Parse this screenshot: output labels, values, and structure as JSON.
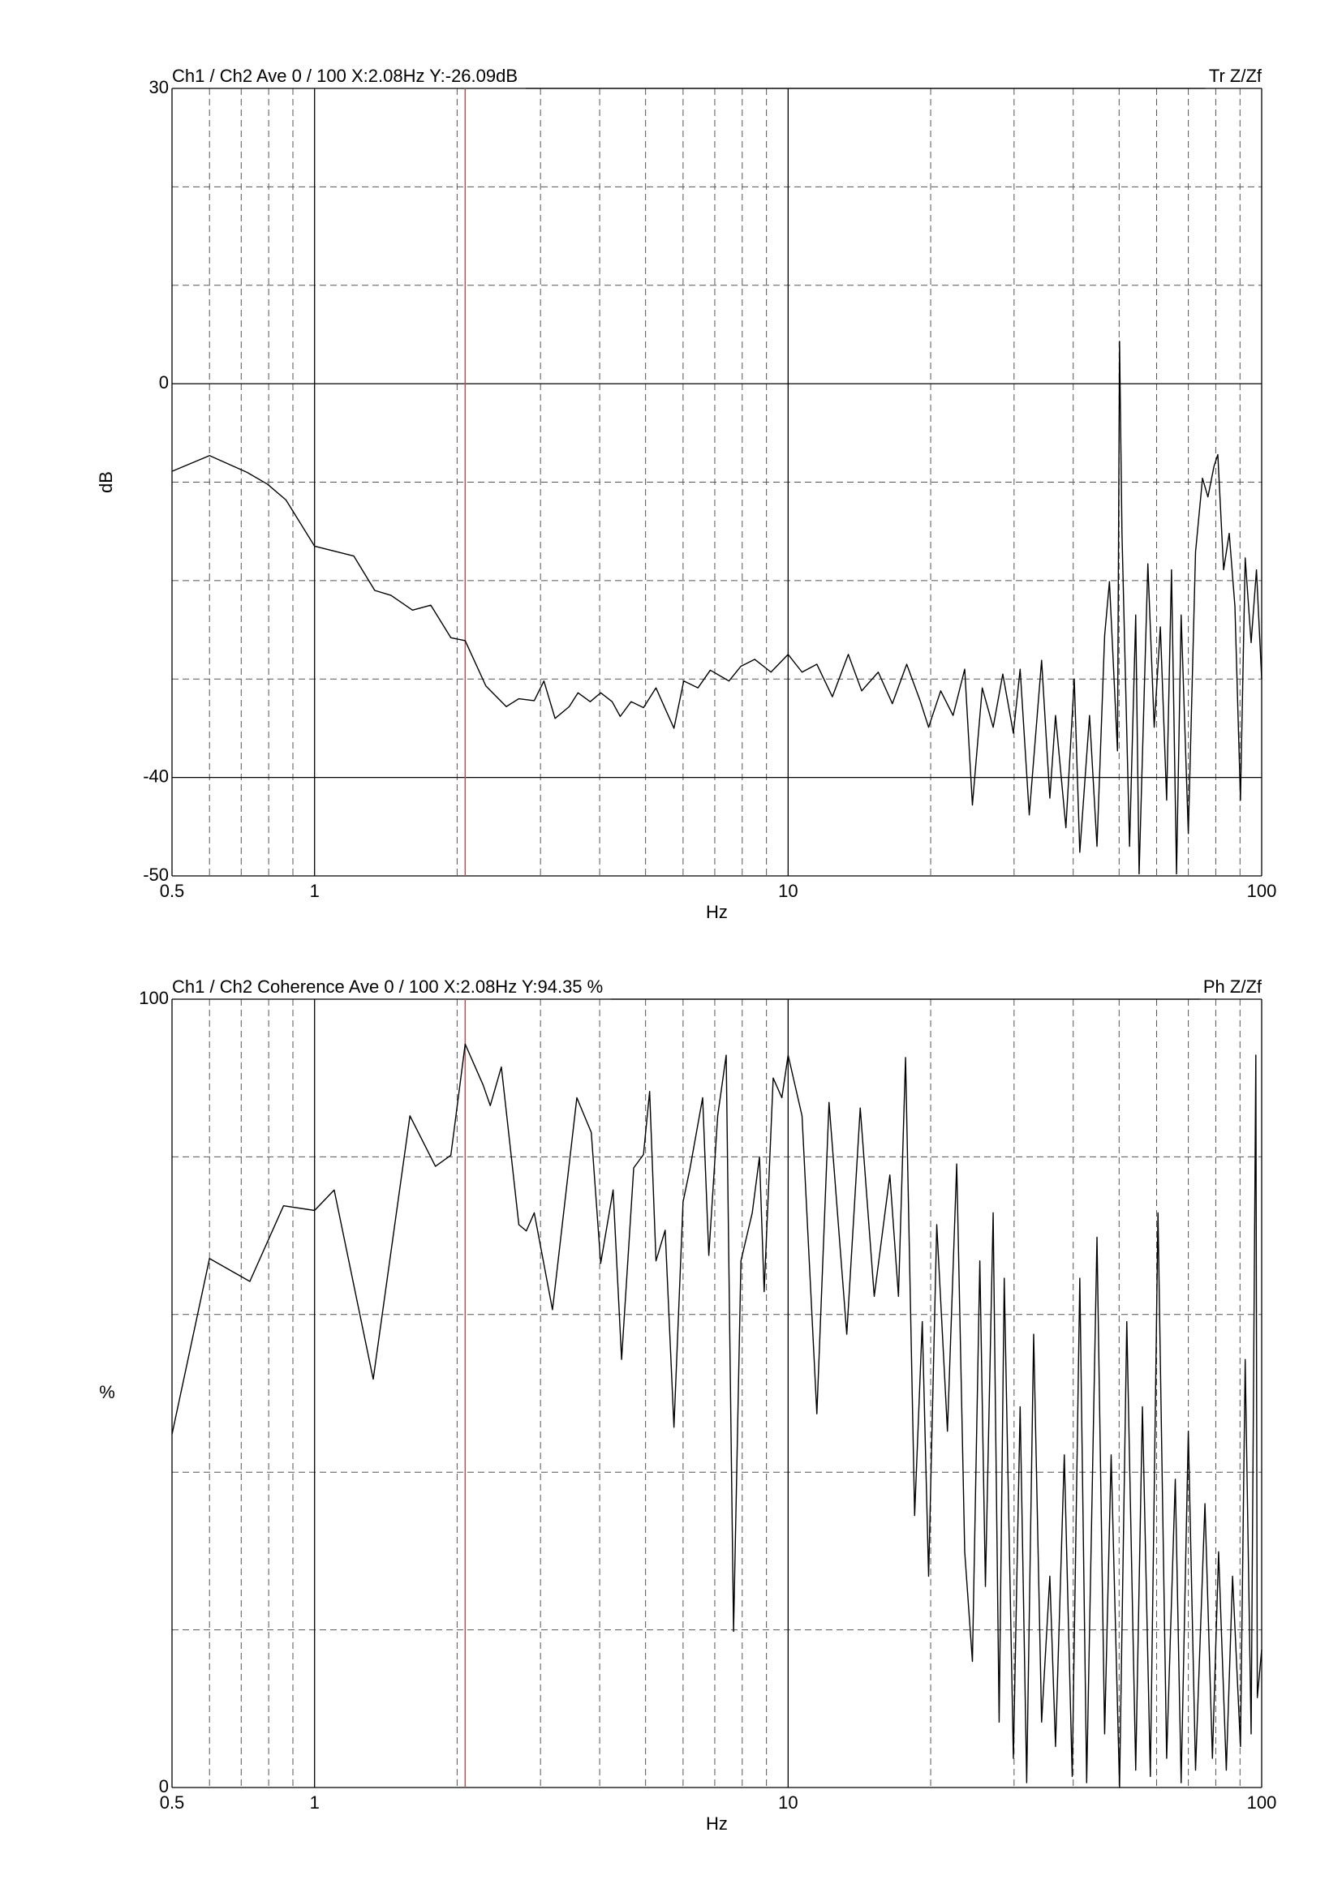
{
  "chart_data": [
    {
      "type": "line",
      "title": "Ch1 / Ch2  Ave 0 / 100  X:2.08Hz  Y:-26.09dB",
      "annotation": "Tr Z/Zf",
      "xlabel": "Hz",
      "ylabel": "dB",
      "ylabel_vertical": true,
      "log_x": true,
      "xlim": [
        0.5,
        100
      ],
      "ylim": [
        -50,
        30
      ],
      "xticks": [
        0.5,
        1,
        10,
        100
      ],
      "yticks": [
        -50,
        -40,
        0,
        30
      ],
      "xgrid_minor": [
        0.6,
        0.7,
        0.8,
        0.9,
        2,
        3,
        4,
        5,
        6,
        7,
        8,
        9,
        20,
        30,
        40,
        50,
        60,
        70,
        80,
        90
      ],
      "ygrid_minor": [
        -30,
        -20,
        -10,
        10,
        20
      ],
      "cursor_x": 2.08,
      "cursor_color": "#d04848",
      "color": "#000000",
      "x": [
        0.5,
        0.6,
        0.72,
        0.795,
        0.87,
        1.0,
        1.21,
        1.34,
        1.45,
        1.61,
        1.76,
        1.94,
        2.08,
        2.3,
        2.54,
        2.7,
        2.91,
        3.05,
        3.22,
        3.45,
        3.6,
        3.82,
        4.02,
        4.25,
        4.42,
        4.66,
        4.95,
        5.26,
        5.5,
        5.74,
        6.02,
        6.45,
        6.85,
        7.5,
        7.95,
        8.5,
        9.2,
        10.0,
        10.7,
        11.5,
        12.4,
        13.4,
        14.3,
        15.5,
        16.6,
        17.8,
        19.0,
        19.8,
        21.0,
        22.3,
        23.6,
        24.5,
        25.7,
        27.1,
        28.4,
        29.9,
        30.9,
        32.3,
        34.3,
        35.7,
        36.7,
        38.6,
        40.2,
        41.3,
        43.3,
        44.9,
        46.6,
        47.7,
        49.6,
        50.1,
        50.7,
        52.6,
        54.2,
        55.1,
        57.5,
        59.3,
        61.1,
        63.0,
        64.5,
        66.1,
        67.6,
        70.0,
        72.5,
        75.0,
        77.0,
        79.3,
        80.8,
        83.1,
        85.4,
        87.8,
        90.2,
        92.3,
        95.0,
        97.5,
        100
      ],
      "values": [
        -8.9,
        -7.3,
        -9.0,
        -10.2,
        -11.8,
        -16.5,
        -17.5,
        -21.0,
        -21.5,
        -23.0,
        -22.5,
        -25.8,
        -26.1,
        -30.7,
        -32.8,
        -32.0,
        -32.2,
        -30.2,
        -34.0,
        -32.8,
        -31.4,
        -32.3,
        -31.4,
        -32.3,
        -33.8,
        -32.3,
        -32.9,
        -30.9,
        -33.0,
        -35.0,
        -30.2,
        -30.9,
        -29.1,
        -30.2,
        -28.7,
        -28.0,
        -29.3,
        -27.5,
        -29.3,
        -28.5,
        -31.8,
        -27.5,
        -31.2,
        -29.3,
        -32.5,
        -28.5,
        -32.2,
        -34.9,
        -31.2,
        -33.7,
        -29.0,
        -42.8,
        -30.9,
        -34.9,
        -29.5,
        -35.5,
        -29.0,
        -43.8,
        -28.1,
        -42.1,
        -33.7,
        -45.1,
        -30.0,
        -47.6,
        -33.7,
        -47.0,
        -25.6,
        -20.1,
        -37.3,
        4.3,
        -15.2,
        -47.0,
        -23.5,
        -49.8,
        -18.3,
        -34.9,
        -24.7,
        -42.3,
        -18.9,
        -49.8,
        -23.5,
        -45.7,
        -17.1,
        -9.6,
        -11.5,
        -8.4,
        -7.2,
        -18.9,
        -15.2,
        -22.6,
        -42.3,
        -17.7,
        -26.3,
        -18.9,
        -30.0
      ]
    },
    {
      "type": "line",
      "title": "Ch1 / Ch2  Coherence Ave 0 / 100  X:2.08Hz  Y:94.35 %",
      "annotation": "Ph Z/Zf",
      "xlabel": "Hz",
      "ylabel": "%",
      "ylabel_vertical": false,
      "log_x": true,
      "xlim": [
        0.5,
        100
      ],
      "ylim": [
        0,
        100
      ],
      "xticks": [
        0.5,
        1,
        10,
        100
      ],
      "yticks": [
        0,
        100
      ],
      "xgrid_minor": [
        0.6,
        0.7,
        0.8,
        0.9,
        2,
        3,
        4,
        5,
        6,
        7,
        8,
        9,
        20,
        30,
        40,
        50,
        60,
        70,
        80,
        90
      ],
      "ygrid_minor": [
        20,
        40,
        60,
        80
      ],
      "cursor_x": 2.08,
      "cursor_color": "#d04848",
      "color": "#000000",
      "x": [
        0.5,
        0.6,
        0.73,
        0.86,
        1.0,
        1.1,
        1.33,
        1.59,
        1.8,
        1.94,
        2.08,
        2.27,
        2.35,
        2.48,
        2.7,
        2.8,
        2.91,
        3.18,
        3.58,
        3.84,
        4.02,
        4.27,
        4.45,
        4.72,
        4.95,
        5.1,
        5.26,
        5.5,
        5.74,
        6.0,
        6.2,
        6.6,
        6.8,
        7.1,
        7.4,
        7.67,
        7.95,
        8.4,
        8.7,
        8.9,
        9.3,
        9.7,
        10,
        10.7,
        11.5,
        12.2,
        13.3,
        14.2,
        15.2,
        16.4,
        17.1,
        17.7,
        18.5,
        19.2,
        19.8,
        20.6,
        21.7,
        22.7,
        23.6,
        24.5,
        25.4,
        26.1,
        27.1,
        27.9,
        28.6,
        29.9,
        30.9,
        31.9,
        33.0,
        34.3,
        35.7,
        36.7,
        38.3,
        39.8,
        41.3,
        42.7,
        44.9,
        46.6,
        48.1,
        50.1,
        51.9,
        54.2,
        56.0,
        58.2,
        60.4,
        63.0,
        65.7,
        67.6,
        70.0,
        72.5,
        75.9,
        78.7,
        81.1,
        84.2,
        86.8,
        90.2,
        92.3,
        95.0,
        97.2,
        97.9,
        100
      ],
      "values": [
        44.8,
        67.1,
        64.2,
        73.8,
        73.2,
        75.8,
        51.8,
        85.2,
        78.8,
        80.2,
        94.3,
        89.1,
        86.5,
        91.4,
        71.4,
        70.6,
        72.9,
        60.6,
        87.5,
        83.1,
        66.5,
        75.8,
        54.3,
        78.6,
        80.3,
        88.3,
        66.8,
        70.7,
        45.7,
        74.3,
        78.4,
        87.5,
        67.5,
        85.2,
        92.9,
        19.8,
        66.8,
        72.9,
        80.0,
        62.9,
        90.0,
        87.5,
        92.9,
        85.2,
        47.4,
        86.9,
        57.5,
        86.2,
        62.3,
        77.7,
        62.3,
        92.6,
        34.5,
        59.1,
        26.8,
        71.4,
        45.2,
        79.1,
        29.9,
        16.0,
        66.8,
        25.5,
        72.9,
        8.3,
        64.6,
        3.7,
        48.3,
        0.6,
        57.5,
        8.3,
        26.8,
        5.2,
        42.2,
        1.4,
        64.6,
        0.6,
        69.8,
        6.8,
        42.2,
        0,
        59.1,
        2.2,
        48.3,
        1.4,
        72.9,
        3.7,
        39.1,
        0.6,
        45.2,
        2.2,
        36.0,
        3.7,
        29.9,
        2.2,
        26.8,
        5.2,
        54.3,
        6.8,
        92.9,
        11.4,
        17.5
      ]
    }
  ]
}
